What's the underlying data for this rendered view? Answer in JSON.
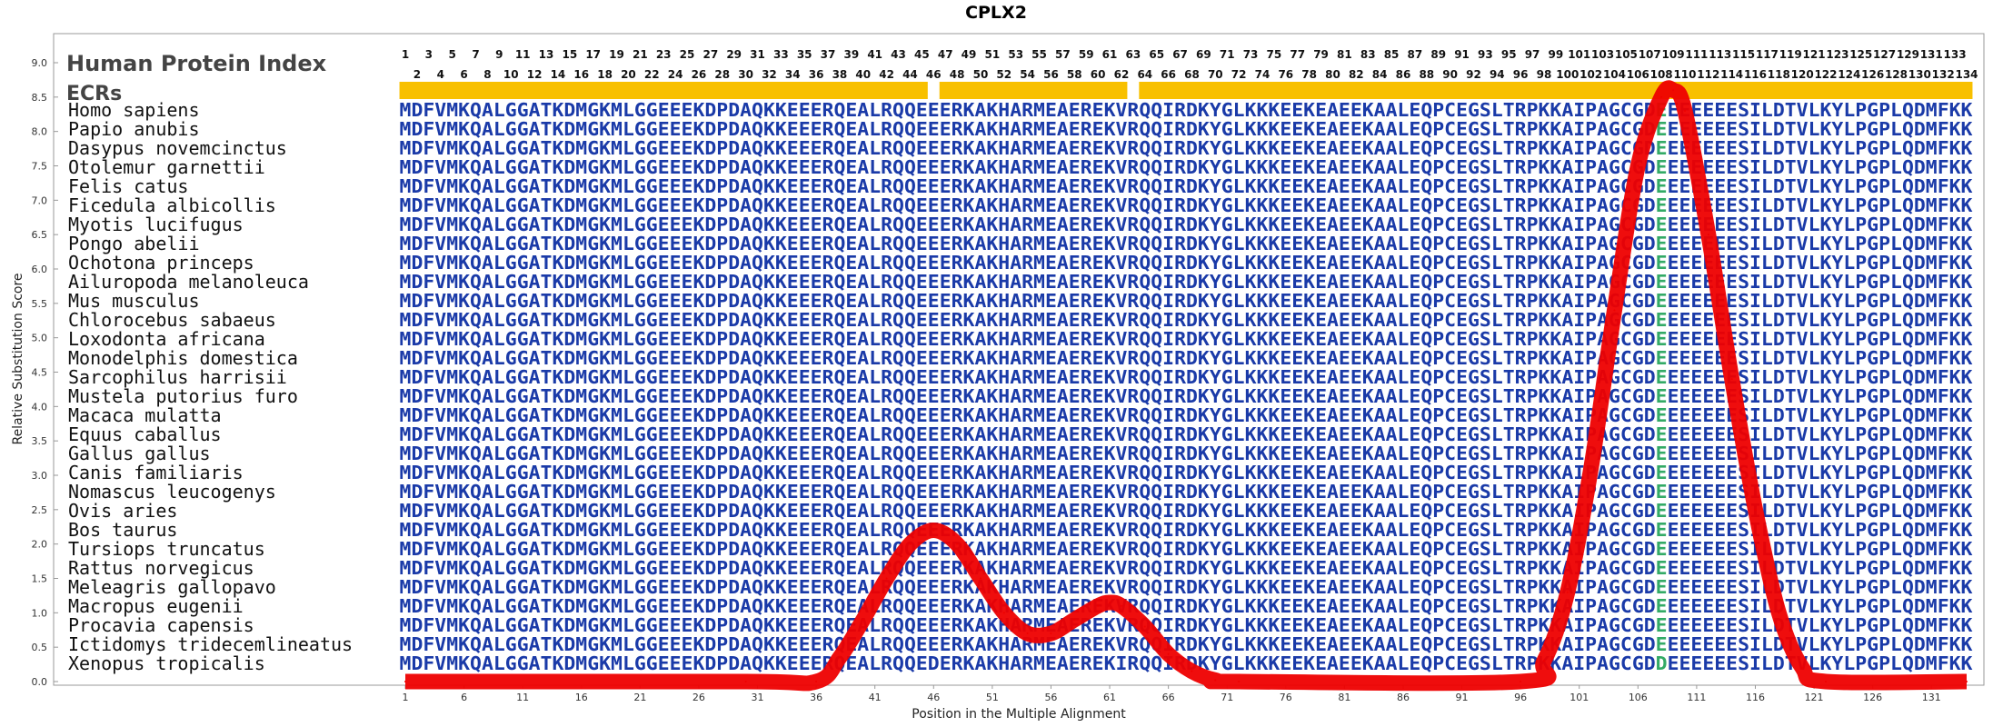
{
  "chart_data": {
    "type": "line",
    "title": "CPLX2",
    "xlabel": "Position in the Multiple Alignment",
    "ylabel": "Relative Substitution Score",
    "xlim": [
      1,
      134
    ],
    "ylim": [
      0.0,
      9.0
    ],
    "x_ticks": [
      1,
      6,
      11,
      16,
      21,
      26,
      31,
      36,
      41,
      46,
      51,
      56,
      61,
      66,
      71,
      76,
      81,
      86,
      91,
      96,
      101,
      106,
      111,
      116,
      121,
      126,
      131
    ],
    "y_ticks": [
      "0.0",
      "0.5",
      "1.0",
      "1.5",
      "2.0",
      "2.5",
      "3.0",
      "3.5",
      "4.0",
      "4.5",
      "5.0",
      "5.5",
      "6.0",
      "6.5",
      "7.0",
      "7.5",
      "8.0",
      "8.5",
      "9.0"
    ],
    "grid": false,
    "line_color": "#ee0000",
    "series": [
      {
        "x": [
          1,
          30,
          36,
          38,
          40,
          42,
          44,
          46,
          48,
          50,
          52,
          54,
          56,
          58,
          60,
          61,
          62,
          64,
          66,
          68,
          70,
          72,
          96,
          98,
          100,
          102,
          104,
          106,
          108,
          109,
          110,
          112,
          114,
          116,
          118,
          120,
          122,
          134
        ],
        "values": [
          0,
          0,
          0,
          0.35,
          0.9,
          1.5,
          2.0,
          2.2,
          2.0,
          1.5,
          1.0,
          0.7,
          0.7,
          0.9,
          1.1,
          1.15,
          1.1,
          0.8,
          0.4,
          0.15,
          0.02,
          0,
          0,
          0.3,
          1.3,
          3.1,
          5.4,
          7.5,
          8.5,
          8.6,
          8.3,
          6.5,
          4.4,
          2.5,
          1.0,
          0.2,
          0,
          0
        ]
      }
    ]
  },
  "alignment": {
    "header_label": "Human Protein Index",
    "ecr_label": "ECRs",
    "ecr_color": "#f8c000",
    "ecr_segments": [
      [
        1,
        45
      ],
      [
        47,
        62
      ],
      [
        64,
        134
      ]
    ],
    "position_numbers": {
      "odd": [
        "1",
        "3",
        "5",
        "7",
        "9",
        "11",
        "13",
        "15",
        "17",
        "19",
        "21",
        "23",
        "25",
        "27",
        "29",
        "31",
        "33",
        "35",
        "37",
        "39",
        "41",
        "43",
        "45",
        "47",
        "49",
        "51",
        "53",
        "55",
        "57",
        "59",
        "61",
        "63",
        "65",
        "67",
        "69",
        "71",
        "73",
        "75",
        "77",
        "79",
        "81",
        "83",
        "85",
        "87",
        "89",
        "91",
        "93",
        "95",
        "97",
        "99",
        "101",
        "103",
        "105",
        "107",
        "109",
        "111",
        "113",
        "115",
        "117",
        "119",
        "121",
        "123",
        "125",
        "127",
        "129",
        "131",
        "133"
      ],
      "even": [
        "2",
        "4",
        "6",
        "8",
        "10",
        "12",
        "14",
        "16",
        "18",
        "20",
        "22",
        "24",
        "26",
        "28",
        "30",
        "32",
        "34",
        "36",
        "38",
        "40",
        "42",
        "44",
        "46",
        "48",
        "50",
        "52",
        "54",
        "56",
        "58",
        "60",
        "62",
        "64",
        "66",
        "68",
        "70",
        "72",
        "74",
        "76",
        "78",
        "80",
        "82",
        "84",
        "86",
        "88",
        "90",
        "92",
        "94",
        "96",
        "98",
        "100",
        "102",
        "104",
        "106",
        "108",
        "110",
        "112",
        "114",
        "116",
        "118",
        "120",
        "122",
        "124",
        "126",
        "128",
        "130",
        "132",
        "134"
      ]
    },
    "seq_color": "#1a3aa8",
    "variant_color": "#33aa66",
    "species": [
      "Homo sapiens",
      "Papio anubis",
      "Dasypus novemcinctus",
      "Otolemur garnettii",
      "Felis catus",
      "Ficedula albicollis",
      "Myotis lucifugus",
      "Pongo abelii",
      "Ochotona princeps",
      "Ailuropoda melanoleuca",
      "Mus musculus",
      "Chlorocebus sabaeus",
      "Loxodonta africana",
      "Monodelphis domestica",
      "Sarcophilus harrisii",
      "Mustela putorius furo",
      "Macaca mulatta",
      "Equus caballus",
      "Gallus gallus",
      "Canis familiaris",
      "Nomascus leucogenys",
      "Ovis aries",
      "Bos taurus",
      "Tursiops truncatus",
      "Rattus norvegicus",
      "Meleagris gallopavo",
      "Macropus eugenii",
      "Procavia capensis",
      "Ictidomys tridecemlineatus",
      "Xenopus tropicalis"
    ],
    "sequences": [
      "MDFVMKQALGGATKDMGKMLGGEEEKDPDAQKKEEERQEALRQQEEERKAKHARMEAEREKVRQQIRDKYGLKKKEEKEAEEKAALEQPCEGSLTRPKKAIPAGCGDEEEEEEESILDTVLKYLPGPLQDMFKK",
      "MDFVMKQALGGATKDMGKMLGGEEEKDPDAQKKEEERQEALRQQEEERKAKHARMEAEREKVRQQIRDKYGLKKKEEKEAEEKAALEQPCEGSLTRPKKAIPAGCGDEEEEEEESILDTVLKYLPGPLQDMFKK",
      "MDFVMKQALGGATKDMGKMLGGEEEKDPDAQKKEEERQEALRQQEEERKAKHARMEAEREKVRQQIRDKYGLKKKEEKEAEEKAALEQPCEGSLTRPKKAIPAGCGDEEEEEEESILDTVLKYLPGPLQDMFKK",
      "MDFVMKQALGGATKDMGKMLGGEEEKDPDAQKKEEERQEALRQQEEERKAKHARMEAEREKVRQQIRDKYGLKKKEEKEAEEKAALEQPCEGSLTRPKKAIPAGCGDEEEEEEESILDTVLKYLPGPLQDMFKK",
      "MDFVMKQALGGATKDMGKMLGGEEEKDPDAQKKEEERQEALRQQEEERKAKHARMEAEREKVRQQIRDKYGLKKKEEKEAEEKAALEQPCEGSLTRPKKAIPAGCGDEEEEEEESILDTVLKYLPGPLQDMFKK",
      "MDFVMKQALGGATKDMGKMLGGEEEKDPDAQKKEEERQEALRQQEEERKAKHARMEAEREKVRQQIRDKYGLKKKEEKEAEEKAALEQPCEGSLTRPKKAIPAGCGDEEEEEEESILDTVLKYLPGPLQDMFKK",
      "MDFVMKQALGGATKDMGKMLGGEEEKDPDAQKKEEERQEALRQQEEERKAKHARMEAEREKVRQQIRDKYGLKKKEEKEAEEKAALEQPCEGSLTRPKKAIPAGCGDEEEEEEESILDTVLKYLPGPLQDMFKK",
      "MDFVMKQALGGATKDMGKMLGGEEEKDPDAQKKEEERQEALRQQEEERKAKHARMEAEREKVRQQIRDKYGLKKKEEKEAEEKAALEQPCEGSLTRPKKAIPAGCGDEEEEEEESILDTVLKYLPGPLQDMFKK",
      "MDFVMKQALGGATKDMGKMLGGEEEKDPDAQKKEEERQEALRQQEEERKAKHARMEAEREKVRQQIRDKYGLKKKEEKEAEEKAALEQPCEGSLTRPKKAIPAGCGDEEEEEEESILDTVLKYLPGPLQDMFKK",
      "MDFVMKQALGGATKDMGKMLGGEEEKDPDAQKKEEERQEALRQQEEERKAKHARMEAEREKVRQQIRDKYGLKKKEEKEAEEKAALEQPCEGSLTRPKKAIPAGCGDEEEEEEESILDTVLKYLPGPLQDMFKK",
      "MDFVMKQALGGATKDMGKMLGGEEEKDPDAQKKEEERQEALRQQEEERKAKHARMEAEREKVRQQIRDKYGLKKKEEKEAEEKAALEQPCEGSLTRPKKAIPAGCGDEEEEEEESILDTVLKYLPGPLQDMFKK",
      "MDFVMKQALGGATKDMGKMLGGEEEKDPDAQKKEEERQEALRQQEEERKAKHARMEAEREKVRQQIRDKYGLKKKEEKEAEEKAALEQPCEGSLTRPKKAIPAGCGDEEEEEEESILDTVLKYLPGPLQDMFKK",
      "MDFVMKQALGGATKDMGKMLGGEEEKDPDAQKKEEERQEALRQQEEERKAKHARMEAEREKVRQQIRDKYGLKKKEEKEAEEKAALEQPCEGSLTRPKKAIPAGCGDEEEEEEESILDTVLKYLPGPLQDMFKK",
      "MDFVMKQALGGATKDMGKMLGGEEEKDPDAQKKEEERQEALRQQEEERKAKHARMEAEREKVRQQIRDKYGLKKKEEKEAEEKAALEQPCEGSLTRPKKAIPAGCGDEEEEEEESILDTVLKYLPGPLQDMFKK",
      "MDFVMKQALGGATKDMGKMLGGEEEKDPDAQKKEEERQEALRQQEEERKAKHARMEAEREKVRQQIRDKYGLKKKEEKEAEEKAALEQPCEGSLTRPKKAIPAGCGDEEEEEEESILDTVLKYLPGPLQDMFKK",
      "MDFVMKQALGGATKDMGKMLGGEEEKDPDAQKKEEERQEALRQQEEERKAKHARMEAEREKVRQQIRDKYGLKKKEEKEAEEKAALEQPCEGSLTRPKKAIPAGCGDEEEEEEESILDTVLKYLPGPLQDMFKK",
      "MDFVMKQALGGATKDMGKMLGGEEEKDPDAQKKEEERQEALRQQEEERKAKHARMEAEREKVRQQIRDKYGLKKKEEKEAEEKAALEQPCEGSLTRPKKAIPAGCGDEEEEEEESILDTVLKYLPGPLQDMFKK",
      "MDFVMKQALGGATKDMGKMLGGEEEKDPDAQKKEEERQEALRQQEEERKAKHARMEAEREKVRQQIRDKYGLKKKEEKEAEEKAALEQPCEGSLTRPKKAIPAGCGDEEEEEEESILDTVLKYLPGPLQDMFKK",
      "MDFVMKQALGGATKDMGKMLGGEEEKDPDAQKKEEERQEALRQQEEERKAKHARMEAEREKVRQQIRDKYGLKKKEEKEAEEKAALEQPCEGSLTRPKKAIPAGCGDEEEEEEESILDTVLKYLPGPLQDMFKK",
      "MDFVMKQALGGATKDMGKMLGGEEEKDPDAQKKEEERQEALRQQEEERKAKHARMEAEREKVRQQIRDKYGLKKKEEKEAEEKAALEQPCEGSLTRPKKAIPAGCGDEEEEEEESILDTVLKYLPGPLQDMFKK",
      "MDFVMKQALGGATKDMGKMLGGEEEKDPDAQKKEEERQEALRQQEEERKAKHARMEAEREKVRQQIRDKYGLKKKEEKEAEEKAALEQPCEGSLTRPKKAIPAGCGDEEEEEEESILDTVLKYLPGPLQDMFKK",
      "MDFVMKQALGGATKDMGKMLGGEEEKDPDAQKKEEERQEALRQQEEERKAKHARMEAEREKVRQQIRDKYGLKKKEEKEAEEKAALEQPCEGSLTRPKKAIPAGCGDEEEEEEESILDTVLKYLPGPLQDMFKK",
      "MDFVMKQALGGATKDMGKMLGGEEEKDPDAQKKEEERQEALRQQEEERKAKHARMEAEREKVRQQIRDKYGLKKKEEKEAEEKAALEQPCEGSLTRPKKAIPAGCGDEEEEEEESILDTVLKYLPGPLQDMFKK",
      "MDFVMKQALGGATKDMGKMLGGEEEKDPDAQKKEEERQEALRQQEEERKAKHARMEAEREKVRQQIRDKYGLKKKEEKEAEEKAALEQPCEGSLTRPKKAIPAGCGDEEEEEEESILDTVLKYLPGPLQDMFKK",
      "MDFVMKQALGGATKDMGKMLGGEEEKDPDAQKKEEERQEALRQQEEERKAKHARMEAEREKVRQQIRDKYGLKKKEEKEAEEKAALEQPCEGSLTRPKKAIPAGCGDEEEEEEESILDTVLKYLPGPLQDMFKK",
      "MDFVMKQALGGATKDMGKMLGGEEEKDPDAQKKEEERQEALRQQEEERKAKHARMEAEREKVRQQIRDKYGLKKKEEKEAEEKAALEQPCEGSLTRPKKAIPAGCGDEEEEEEESILDTVLKYLPGPLQDMFKK",
      "MDFVMKQALGGATKDMGKMLGGEEEKDPDAQKKEEERQEALRQQEEERKAKHARMEAEREKVRQQIRDKYGLKKKEEKEAEEKAALEQPCEGSLTRPKKAIPAGCGDEEEEEEESILDTVLKYLPGPLQDMFKK",
      "MDFVMKQALGGATKDMGKMLGGEEEKDPDAQKKEEERQEALRQQEEERKAKHARMEAEREKVRQQIRDKYGLKKKEEKEAEEKAALEQPCEGSLTRPKKAIPAGCGDEEEEEEESILDTVLKYLPGPLQDMFKK",
      "MDFVMKQALGGATKDMGKMLGGEEEKDPDAQKKEEERQEALRQQEEERKAKHARMEAEREKVRQQIRDKYGLKKKEEKEAEEKAALEQPCEGSLTRPKKAIPAGCGDEEEEEEESILDTVLKYLPGPLQDMFKK",
      "MDFVMKQALGGATKDMGKMLGGEEEKDPDAQKKEEERQEALRQQEDERKAKHARMEAEREKIRQQIRDKYGLKKKEEKEAEEKAALEQPCEGSLTRPKKAIPAGCGDDEEEEEESILDTVLKYLPGPLQDMFKK"
    ],
    "variant_columns": [
      108
    ]
  }
}
